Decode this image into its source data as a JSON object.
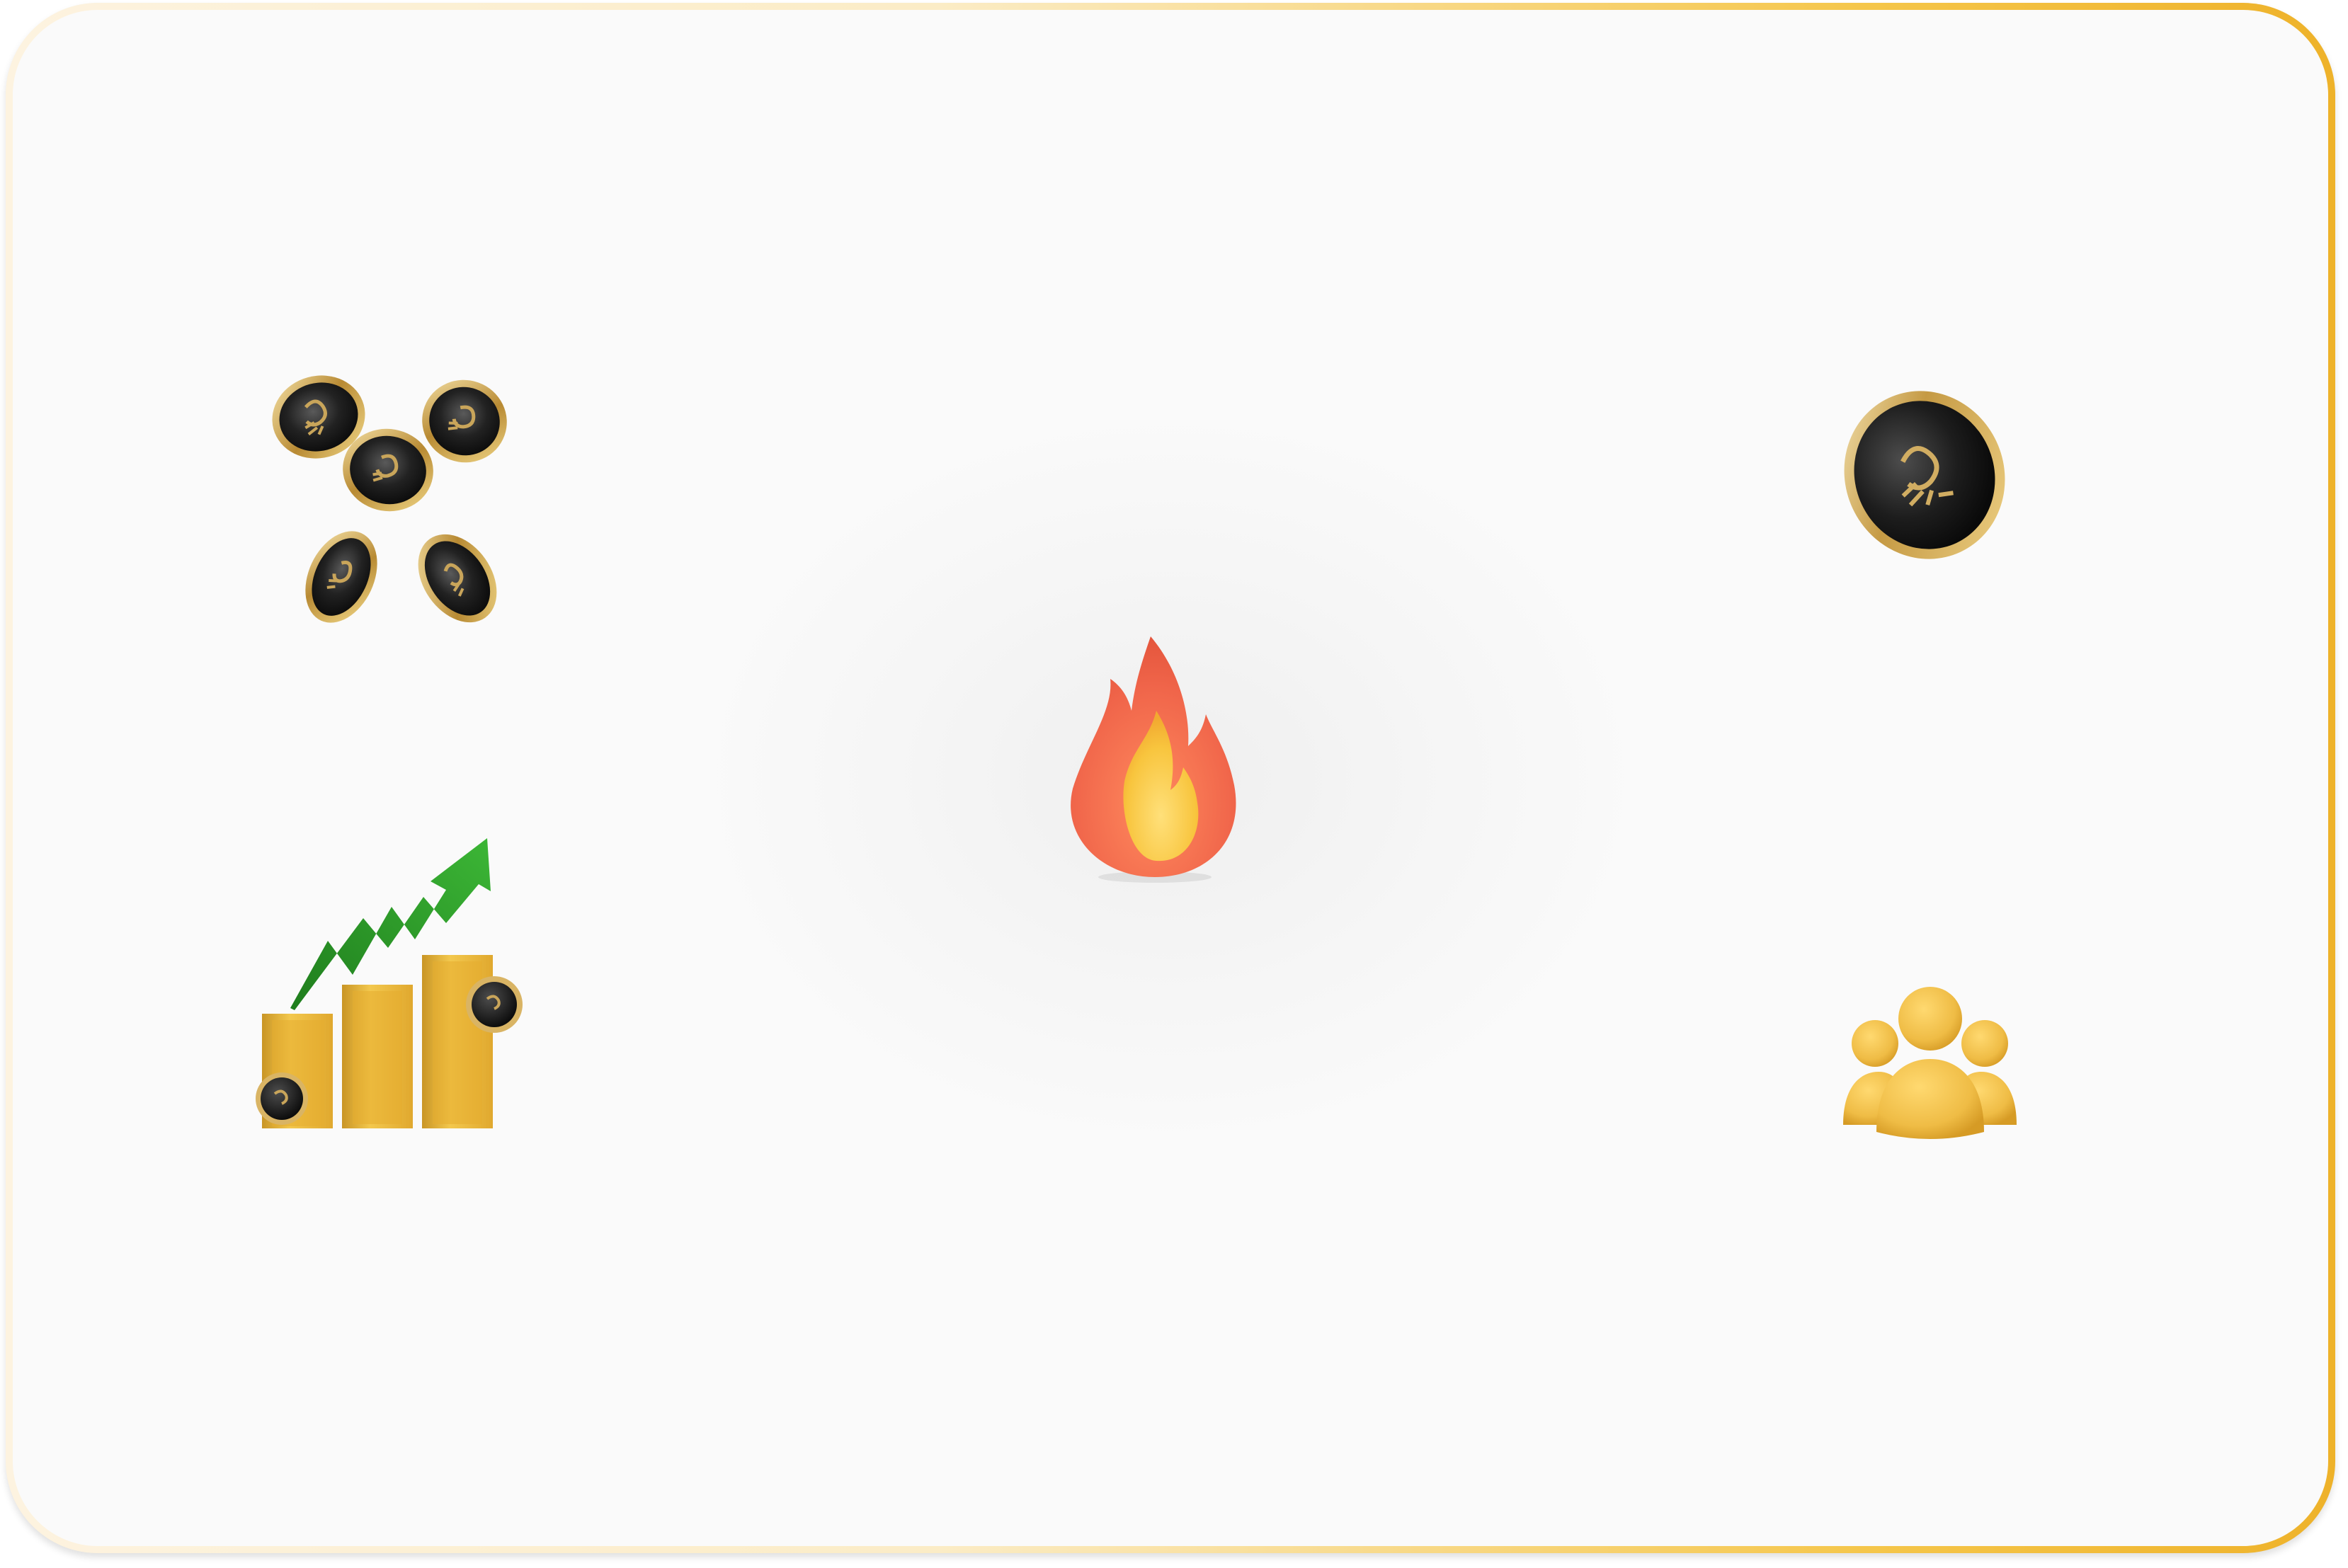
{
  "card": {
    "name": "feature-card",
    "border_gradient": [
      "#fdf3e0",
      "#fbecc6",
      "#f5c64a",
      "#eeb22a"
    ],
    "background_color": "#f9f9f9"
  },
  "icons": {
    "coins_scatter": "scattered-coins-icon",
    "single_coin": "coin-icon",
    "fire": "fire-icon",
    "growth_chart": "growth-chart-icon",
    "community": "community-icon"
  },
  "colors": {
    "coin_gold": "#d8b15a",
    "coin_black": "#1a1a1a",
    "flame_outer": "#f06a4a",
    "flame_inner": "#f7c63c",
    "arrow_green": "#2e9b2a",
    "bar_gold": "#e7b53a",
    "people_gold": "#edbb48"
  }
}
